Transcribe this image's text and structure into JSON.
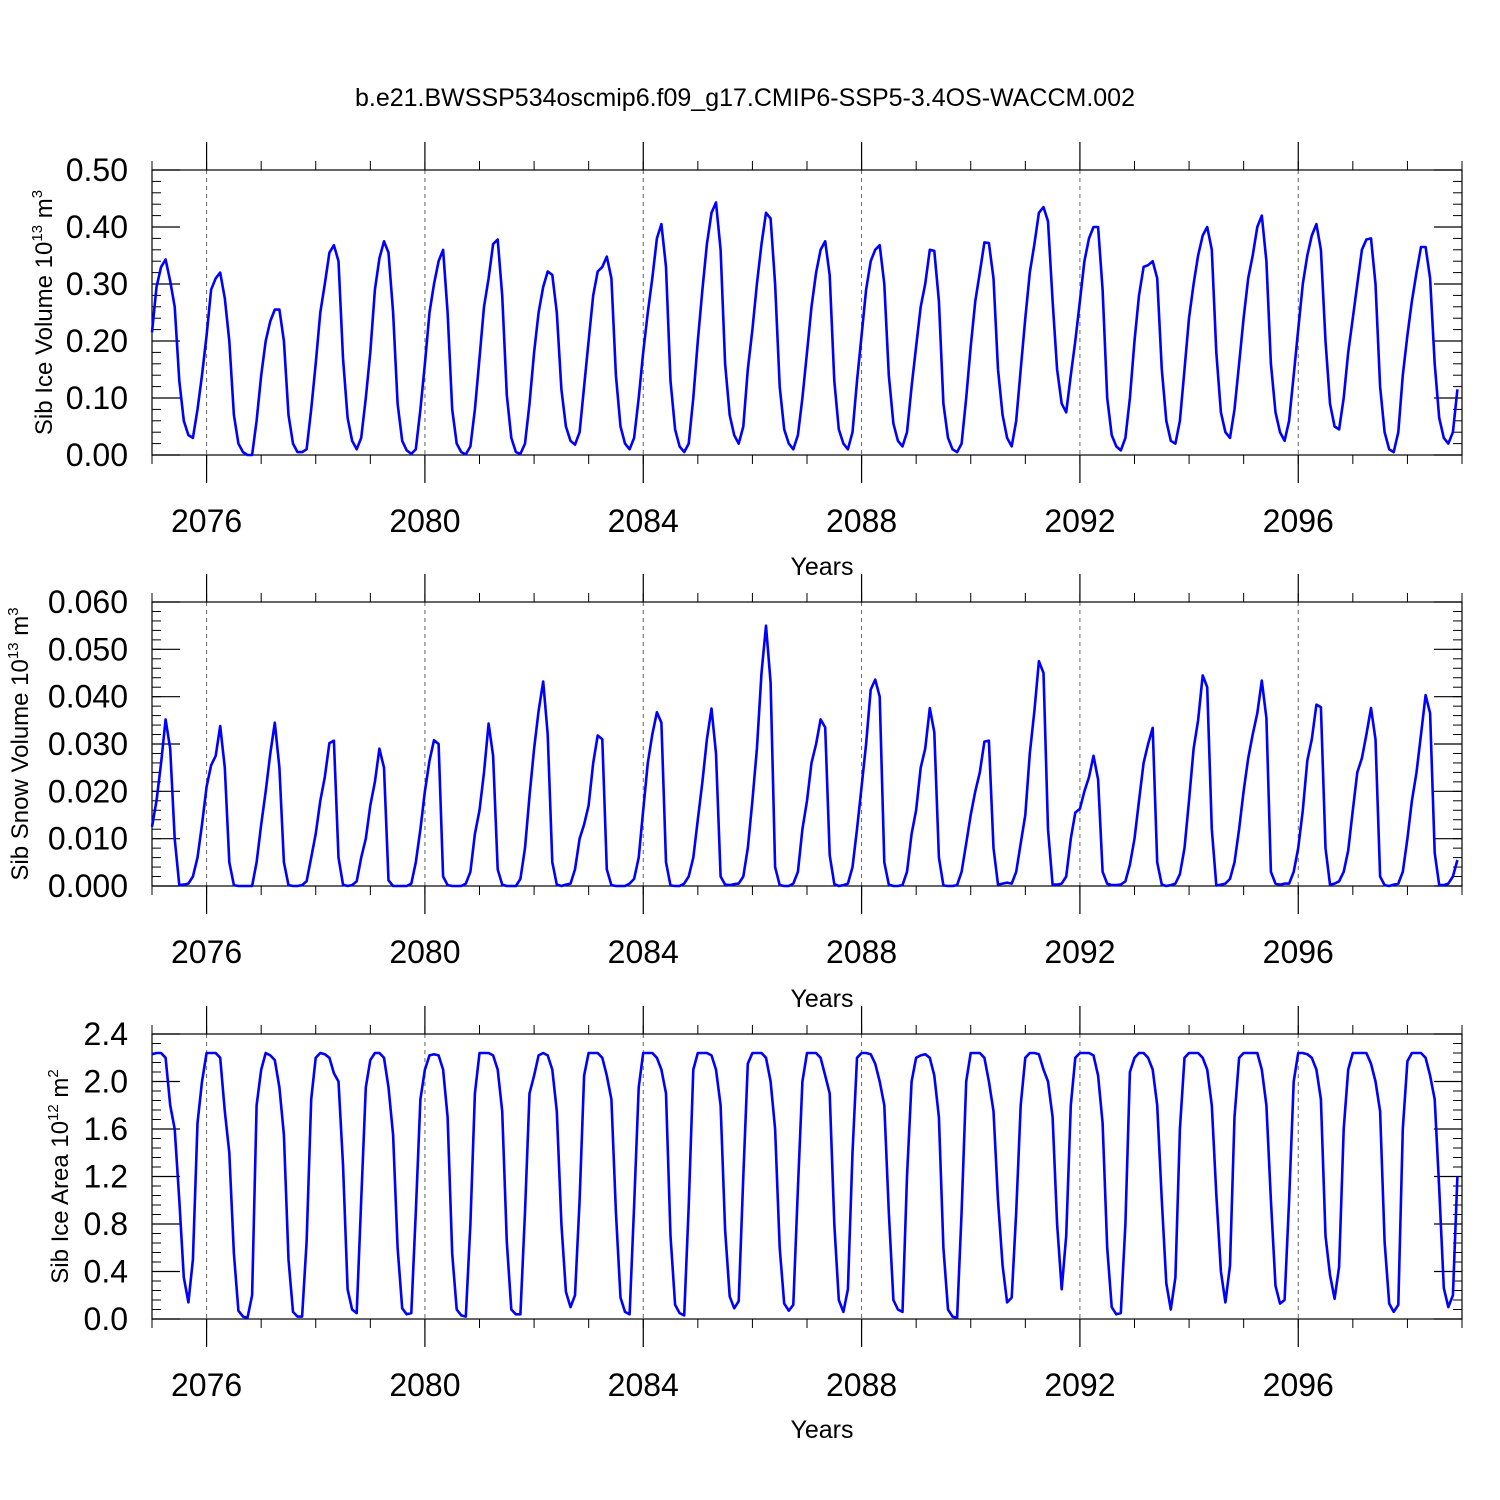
{
  "title": "b.e21.BWSSP534oscmip6.f09_g17.CMIP6-SSP5-3.4OS-WACCM.002",
  "colors": {
    "line": "#0000ff",
    "axis": "#000000",
    "grid": "#666666"
  },
  "chart_data": [
    {
      "type": "line",
      "ylabel_main": "Sib Ice Volume 10",
      "ylabel_exp": "13",
      "ylabel_unit": " m",
      "ylabel_unit_exp": "3",
      "xlabel": "Years",
      "xlim": [
        2075,
        2099
      ],
      "ylim": [
        0,
        0.5
      ],
      "yticks": [
        "0.00",
        "0.10",
        "0.20",
        "0.30",
        "0.40",
        "0.50"
      ],
      "xticks": [
        "2076",
        "2080",
        "2084",
        "2088",
        "2092",
        "2096"
      ],
      "grid": "dashed vertical at major x ticks",
      "series": [
        {
          "name": "Sib Ice Volume",
          "start": 2075.0,
          "step": 0.08333,
          "values": [
            0.215,
            0.295,
            0.33,
            0.343,
            0.305,
            0.26,
            0.13,
            0.06,
            0.035,
            0.03,
            0.08,
            0.14,
            0.21,
            0.29,
            0.31,
            0.32,
            0.275,
            0.2,
            0.07,
            0.02,
            0.005,
            0.0,
            0.0,
            0.06,
            0.14,
            0.2,
            0.235,
            0.255,
            0.255,
            0.2,
            0.07,
            0.02,
            0.005,
            0.005,
            0.01,
            0.08,
            0.16,
            0.25,
            0.3,
            0.355,
            0.368,
            0.34,
            0.17,
            0.065,
            0.025,
            0.01,
            0.03,
            0.1,
            0.18,
            0.29,
            0.345,
            0.375,
            0.355,
            0.25,
            0.09,
            0.025,
            0.008,
            0.002,
            0.01,
            0.08,
            0.16,
            0.25,
            0.3,
            0.34,
            0.36,
            0.25,
            0.08,
            0.02,
            0.005,
            0.001,
            0.015,
            0.08,
            0.17,
            0.26,
            0.31,
            0.37,
            0.378,
            0.28,
            0.105,
            0.03,
            0.005,
            0.002,
            0.02,
            0.09,
            0.18,
            0.25,
            0.295,
            0.322,
            0.316,
            0.25,
            0.115,
            0.05,
            0.025,
            0.018,
            0.04,
            0.12,
            0.2,
            0.28,
            0.322,
            0.33,
            0.348,
            0.31,
            0.14,
            0.05,
            0.02,
            0.01,
            0.03,
            0.1,
            0.18,
            0.25,
            0.31,
            0.38,
            0.405,
            0.33,
            0.13,
            0.045,
            0.015,
            0.005,
            0.02,
            0.1,
            0.2,
            0.29,
            0.37,
            0.425,
            0.443,
            0.36,
            0.16,
            0.07,
            0.035,
            0.02,
            0.05,
            0.15,
            0.22,
            0.3,
            0.37,
            0.425,
            0.415,
            0.3,
            0.12,
            0.045,
            0.02,
            0.01,
            0.035,
            0.1,
            0.18,
            0.26,
            0.32,
            0.36,
            0.375,
            0.315,
            0.13,
            0.045,
            0.02,
            0.01,
            0.04,
            0.13,
            0.21,
            0.29,
            0.34,
            0.36,
            0.368,
            0.3,
            0.14,
            0.055,
            0.025,
            0.015,
            0.04,
            0.12,
            0.19,
            0.26,
            0.3,
            0.36,
            0.358,
            0.27,
            0.09,
            0.03,
            0.01,
            0.005,
            0.02,
            0.1,
            0.19,
            0.27,
            0.32,
            0.373,
            0.372,
            0.31,
            0.15,
            0.07,
            0.03,
            0.015,
            0.06,
            0.15,
            0.24,
            0.32,
            0.37,
            0.425,
            0.435,
            0.41,
            0.27,
            0.15,
            0.09,
            0.075,
            0.14,
            0.2,
            0.27,
            0.34,
            0.38,
            0.4,
            0.4,
            0.29,
            0.1,
            0.035,
            0.015,
            0.008,
            0.03,
            0.1,
            0.2,
            0.28,
            0.33,
            0.333,
            0.34,
            0.31,
            0.15,
            0.06,
            0.025,
            0.02,
            0.06,
            0.15,
            0.24,
            0.3,
            0.35,
            0.385,
            0.4,
            0.36,
            0.18,
            0.075,
            0.04,
            0.03,
            0.08,
            0.16,
            0.24,
            0.31,
            0.35,
            0.4,
            0.42,
            0.34,
            0.16,
            0.075,
            0.04,
            0.025,
            0.06,
            0.14,
            0.22,
            0.3,
            0.35,
            0.385,
            0.405,
            0.36,
            0.2,
            0.09,
            0.05,
            0.045,
            0.1,
            0.18,
            0.24,
            0.3,
            0.36,
            0.378,
            0.38,
            0.3,
            0.12,
            0.04,
            0.01,
            0.005,
            0.04,
            0.14,
            0.21,
            0.27,
            0.32,
            0.365,
            0.365,
            0.31,
            0.16,
            0.065,
            0.03,
            0.02,
            0.04,
            0.115
          ]
        }
      ]
    },
    {
      "type": "line",
      "ylabel_main": "Sib Snow Volume 10",
      "ylabel_exp": "13",
      "ylabel_unit": " m",
      "ylabel_unit_exp": "3",
      "xlabel": "Years",
      "xlim": [
        2075,
        2099
      ],
      "ylim": [
        0,
        0.06
      ],
      "yticks": [
        "0.000",
        "0.010",
        "0.020",
        "0.030",
        "0.040",
        "0.050",
        "0.060"
      ],
      "xticks": [
        "2076",
        "2080",
        "2084",
        "2088",
        "2092",
        "2096"
      ],
      "grid": "dashed vertical at major x ticks",
      "series": [
        {
          "name": "Sib Snow Volume",
          "start": 2075.0,
          "step": 0.08333,
          "values": [
            0.0125,
            0.018,
            0.026,
            0.0352,
            0.029,
            0.01,
            0.0002,
            0.0003,
            0.0005,
            0.002,
            0.006,
            0.013,
            0.021,
            0.0255,
            0.0275,
            0.0338,
            0.025,
            0.005,
            0.0002,
            0.0,
            0.0,
            0.0,
            0.0,
            0.005,
            0.013,
            0.02,
            0.028,
            0.0345,
            0.025,
            0.005,
            0.0002,
            0.0,
            0.0,
            0.0002,
            0.001,
            0.006,
            0.011,
            0.018,
            0.023,
            0.0302,
            0.0307,
            0.006,
            0.0003,
            0.0,
            0.0002,
            0.001,
            0.006,
            0.01,
            0.017,
            0.022,
            0.029,
            0.025,
            0.0012,
            0.0,
            0.0,
            0.0,
            0.0,
            0.0005,
            0.005,
            0.012,
            0.02,
            0.0265,
            0.0308,
            0.03,
            0.002,
            0.0002,
            0.0,
            0.0,
            0.0,
            0.0005,
            0.003,
            0.011,
            0.016,
            0.024,
            0.0343,
            0.0275,
            0.0035,
            0.0003,
            0.0,
            0.0,
            0.0,
            0.0015,
            0.008,
            0.019,
            0.029,
            0.037,
            0.0432,
            0.032,
            0.005,
            0.0003,
            0.0,
            0.0003,
            0.0005,
            0.0035,
            0.01,
            0.013,
            0.017,
            0.026,
            0.0318,
            0.031,
            0.0035,
            0.0002,
            0.0,
            0.0,
            0.0,
            0.0005,
            0.0015,
            0.006,
            0.016,
            0.026,
            0.032,
            0.0367,
            0.0345,
            0.005,
            0.0001,
            0.0,
            0.0,
            0.0005,
            0.002,
            0.006,
            0.014,
            0.022,
            0.031,
            0.0375,
            0.028,
            0.002,
            0.0003,
            0.0002,
            0.0004,
            0.0005,
            0.002,
            0.008,
            0.018,
            0.029,
            0.045,
            0.055,
            0.043,
            0.004,
            0.0002,
            0.0,
            0.0,
            0.0005,
            0.003,
            0.012,
            0.018,
            0.026,
            0.03,
            0.0352,
            0.0335,
            0.0065,
            0.0004,
            0.0,
            0.0002,
            0.0005,
            0.004,
            0.012,
            0.021,
            0.03,
            0.0415,
            0.0436,
            0.04,
            0.005,
            0.0003,
            0.0,
            0.0,
            0.0002,
            0.003,
            0.011,
            0.016,
            0.025,
            0.029,
            0.0376,
            0.0325,
            0.006,
            0.0001,
            0.0,
            0.0,
            0.0002,
            0.003,
            0.009,
            0.015,
            0.02,
            0.024,
            0.0305,
            0.0307,
            0.008,
            0.0003,
            0.0005,
            0.0007,
            0.0005,
            0.003,
            0.009,
            0.015,
            0.028,
            0.037,
            0.0475,
            0.045,
            0.012,
            0.0003,
            0.0003,
            0.0005,
            0.002,
            0.01,
            0.0155,
            0.0163,
            0.02,
            0.023,
            0.0275,
            0.0225,
            0.003,
            0.0005,
            0.0002,
            0.0002,
            0.0003,
            0.001,
            0.0045,
            0.01,
            0.018,
            0.026,
            0.03,
            0.0334,
            0.005,
            0.0003,
            0.0,
            0.0002,
            0.0005,
            0.0025,
            0.008,
            0.018,
            0.029,
            0.035,
            0.0445,
            0.042,
            0.012,
            0.0001,
            0.0003,
            0.0005,
            0.0015,
            0.005,
            0.012,
            0.02,
            0.027,
            0.032,
            0.0365,
            0.0434,
            0.0355,
            0.003,
            0.0005,
            0.0003,
            0.0005,
            0.0005,
            0.003,
            0.008,
            0.016,
            0.0265,
            0.031,
            0.0383,
            0.0378,
            0.008,
            0.0003,
            0.0005,
            0.001,
            0.003,
            0.0075,
            0.016,
            0.024,
            0.027,
            0.032,
            0.0376,
            0.031,
            0.002,
            0.0002,
            0.0,
            0.0003,
            0.0005,
            0.003,
            0.01,
            0.018,
            0.024,
            0.032,
            0.0403,
            0.0365,
            0.007,
            0.0002,
            0.0002,
            0.0005,
            0.002,
            0.0055
          ]
        }
      ]
    },
    {
      "type": "line",
      "ylabel_main": "Sib Ice Area 10",
      "ylabel_exp": "12",
      "ylabel_unit": " m",
      "ylabel_unit_exp": "2",
      "xlabel": "Years",
      "xlim": [
        2075,
        2099
      ],
      "ylim": [
        0,
        2.4
      ],
      "yticks": [
        "0.0",
        "0.4",
        "0.8",
        "1.2",
        "1.6",
        "2.0",
        "2.4"
      ],
      "xticks": [
        "2076",
        "2080",
        "2084",
        "2088",
        "2092",
        "2096"
      ],
      "grid": "dashed vertical at major x ticks",
      "series": [
        {
          "name": "Sib Ice Area",
          "start": 2075.0,
          "step": 0.08333,
          "values": [
            2.23,
            2.24,
            2.24,
            2.2,
            1.8,
            1.6,
            1.0,
            0.35,
            0.14,
            0.5,
            1.65,
            2.0,
            2.24,
            2.24,
            2.24,
            2.2,
            1.75,
            1.4,
            0.55,
            0.07,
            0.02,
            0.01,
            0.2,
            1.8,
            2.1,
            2.24,
            2.22,
            2.18,
            1.95,
            1.55,
            0.5,
            0.06,
            0.02,
            0.02,
            0.65,
            1.85,
            2.2,
            2.24,
            2.23,
            2.2,
            2.07,
            2.0,
            1.3,
            0.25,
            0.08,
            0.05,
            1.0,
            1.95,
            2.18,
            2.24,
            2.24,
            2.2,
            1.95,
            1.55,
            0.6,
            0.09,
            0.04,
            0.05,
            0.9,
            1.85,
            2.1,
            2.22,
            2.23,
            2.22,
            2.1,
            1.7,
            0.55,
            0.08,
            0.03,
            0.02,
            0.8,
            1.9,
            2.24,
            2.24,
            2.24,
            2.22,
            2.1,
            1.75,
            0.65,
            0.08,
            0.04,
            0.04,
            0.9,
            1.9,
            2.05,
            2.22,
            2.24,
            2.22,
            2.1,
            1.75,
            0.8,
            0.23,
            0.1,
            0.2,
            1.0,
            2.05,
            2.24,
            2.24,
            2.24,
            2.2,
            2.05,
            1.85,
            0.9,
            0.18,
            0.06,
            0.04,
            0.95,
            1.95,
            2.24,
            2.24,
            2.24,
            2.2,
            2.1,
            1.9,
            0.7,
            0.12,
            0.05,
            0.03,
            0.95,
            2.1,
            2.24,
            2.24,
            2.24,
            2.22,
            2.1,
            1.8,
            0.75,
            0.19,
            0.09,
            0.15,
            1.2,
            2.15,
            2.24,
            2.24,
            2.24,
            2.2,
            2.0,
            1.6,
            0.6,
            0.13,
            0.07,
            0.12,
            1.1,
            2.0,
            2.24,
            2.24,
            2.24,
            2.2,
            2.05,
            1.9,
            0.8,
            0.16,
            0.06,
            0.25,
            1.4,
            2.2,
            2.24,
            2.24,
            2.23,
            2.15,
            2.0,
            1.8,
            0.9,
            0.16,
            0.08,
            0.06,
            1.2,
            2.0,
            2.2,
            2.22,
            2.23,
            2.2,
            2.05,
            1.7,
            0.6,
            0.08,
            0.02,
            0.01,
            0.9,
            2.0,
            2.24,
            2.24,
            2.24,
            2.2,
            2.0,
            1.75,
            1.0,
            0.45,
            0.14,
            0.18,
            0.9,
            1.8,
            2.2,
            2.24,
            2.24,
            2.23,
            2.1,
            2.0,
            1.7,
            0.8,
            0.25,
            0.7,
            1.8,
            2.2,
            2.24,
            2.24,
            2.24,
            2.22,
            2.05,
            1.65,
            0.6,
            0.1,
            0.04,
            0.05,
            0.8,
            2.08,
            2.2,
            2.24,
            2.24,
            2.2,
            2.1,
            1.8,
            1.0,
            0.3,
            0.08,
            0.35,
            1.6,
            2.2,
            2.24,
            2.24,
            2.24,
            2.2,
            2.1,
            1.8,
            1.05,
            0.4,
            0.14,
            0.45,
            1.7,
            2.2,
            2.24,
            2.24,
            2.24,
            2.24,
            2.1,
            1.8,
            1.0,
            0.28,
            0.13,
            0.16,
            1.0,
            2.0,
            2.24,
            2.24,
            2.23,
            2.2,
            2.1,
            1.85,
            0.7,
            0.37,
            0.17,
            0.44,
            1.6,
            2.1,
            2.24,
            2.24,
            2.24,
            2.24,
            2.15,
            2.0,
            1.75,
            0.65,
            0.13,
            0.06,
            0.12,
            1.6,
            2.17,
            2.24,
            2.24,
            2.24,
            2.2,
            2.05,
            1.85,
            1.1,
            0.26,
            0.1,
            0.2,
            1.2
          ]
        }
      ]
    }
  ]
}
